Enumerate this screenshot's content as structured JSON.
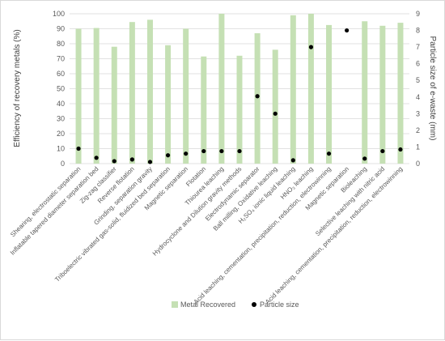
{
  "chart_data": {
    "type": "bar",
    "title": "",
    "ylabel": "Efficiency of recovery metals (%)",
    "y2label": "Particle size of e-waste (mm)",
    "ylim": [
      0,
      100
    ],
    "y2lim": [
      0,
      9
    ],
    "yticks": [
      "0",
      "10",
      "20",
      "30",
      "40",
      "50",
      "60",
      "70",
      "80",
      "90",
      "100"
    ],
    "y2ticks": [
      "0",
      "1",
      "2",
      "3",
      "4",
      "5",
      "6",
      "7",
      "8",
      "9"
    ],
    "grid": true,
    "legend_position": "bottom",
    "colors": {
      "bar": "#c5e0b4",
      "point": "#000000",
      "grid": "#d9d9d9",
      "axis_text": "#595959"
    },
    "categories": [
      "Shearing, electrostatic separation",
      "Inflatable tapered diameter separation bed",
      "Zig-zag classifier",
      "Reverse flotation",
      "Grinding, separation gravity",
      "Triboelectric vibrated gas-solid, fluidized bed separation",
      "Magnetic separation",
      "Flotation",
      "Thiourea leaching",
      "Hydrocyclone and Dilution gravity methods",
      "Electrodynamic separator",
      "Ball milling, Oxidative leaching",
      "H₂SO₄ ionic liquid leaching",
      "HNO₃ leaching",
      "Acid leaching, cementation, precipitation, reduction, electrowinning",
      "Magnetic separation",
      "Bioleaching",
      "Selective leaching with nitric acid",
      "Acid leaching, cementation, precipitation, reduction, electrowinning"
    ],
    "series": [
      {
        "name": "Metal Recovered",
        "type": "bar",
        "axis": "left",
        "values": [
          90,
          90.5,
          78,
          94.5,
          96,
          79,
          90,
          71.5,
          100,
          72,
          87,
          76,
          99,
          100,
          92.5,
          null,
          95,
          92,
          94
        ]
      },
      {
        "name": "Particle size",
        "type": "scatter",
        "axis": "right",
        "values": [
          0.9,
          0.35,
          0.15,
          0.25,
          0.1,
          0.5,
          0.6,
          0.75,
          0.75,
          0.75,
          4.05,
          3,
          0.2,
          7,
          0.6,
          8,
          0.3,
          0.75,
          0.85
        ]
      }
    ]
  }
}
